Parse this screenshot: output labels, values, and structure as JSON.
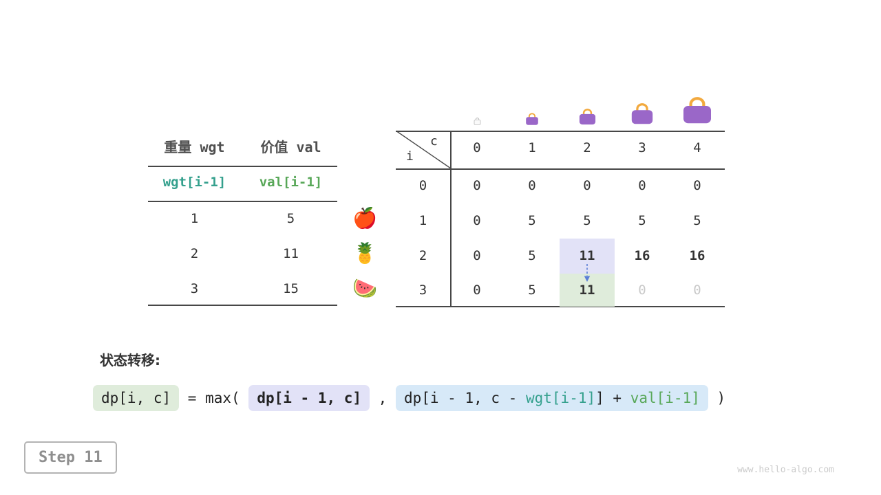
{
  "page": {
    "step_label": "Step 11",
    "watermark": "www.hello-algo.com"
  },
  "colors": {
    "wgt_text": "#34a08d",
    "val_text": "#58a758",
    "hl_green_bg": "#dfecdb",
    "hl_purple_bg": "#e2e2f7",
    "hl_blue_bg": "#d7e9f8",
    "dim_text": "#c9c9c9",
    "bag_body": "#9a67c8",
    "bag_handle": "#f2a93e",
    "arrow": "#5b7fd6"
  },
  "weights_table": {
    "headers": [
      "重量 wgt",
      "价值 val"
    ],
    "var_row": [
      "wgt[i-1]",
      "val[i-1]"
    ],
    "rows": [
      {
        "wgt": "1",
        "val": "5",
        "fruit_icon": "apple-icon",
        "fruit": "🍎"
      },
      {
        "wgt": "2",
        "val": "11",
        "fruit_icon": "pineapple-icon",
        "fruit": "🍍"
      },
      {
        "wgt": "3",
        "val": "15",
        "fruit_icon": "watermelon-icon",
        "fruit": "🍉"
      }
    ]
  },
  "dp_table": {
    "corner_row_var": "i",
    "corner_col_var": "c",
    "col_headers": [
      "0",
      "1",
      "2",
      "3",
      "4"
    ],
    "capacity_icons": [
      "empty-bag-icon",
      "bag-small-icon",
      "bag-medium-icon",
      "bag-large-icon",
      "bag-xlarge-icon"
    ],
    "rows": [
      {
        "header": "0",
        "cells": [
          {
            "v": "0"
          },
          {
            "v": "0"
          },
          {
            "v": "0"
          },
          {
            "v": "0"
          },
          {
            "v": "0"
          }
        ]
      },
      {
        "header": "1",
        "cells": [
          {
            "v": "0"
          },
          {
            "v": "5"
          },
          {
            "v": "5"
          },
          {
            "v": "5"
          },
          {
            "v": "5"
          }
        ]
      },
      {
        "header": "2",
        "cells": [
          {
            "v": "0"
          },
          {
            "v": "5"
          },
          {
            "v": "11",
            "style": "hl-purple"
          },
          {
            "v": "16",
            "style": "bold"
          },
          {
            "v": "16",
            "style": "bold"
          }
        ]
      },
      {
        "header": "3",
        "cells": [
          {
            "v": "0"
          },
          {
            "v": "5"
          },
          {
            "v": "11",
            "style": "hl-green"
          },
          {
            "v": "0",
            "style": "dim"
          },
          {
            "v": "0",
            "style": "dim"
          }
        ]
      }
    ]
  },
  "formula": {
    "label": "状态转移:",
    "tokens": [
      {
        "box": "green",
        "segments": [
          {
            "text": "dp[i, c]"
          }
        ]
      },
      {
        "segments": [
          {
            "text": " = max( "
          }
        ]
      },
      {
        "box": "purple",
        "bold": true,
        "segments": [
          {
            "text": "dp[i - 1, c]"
          }
        ]
      },
      {
        "segments": [
          {
            "text": " , "
          }
        ]
      },
      {
        "box": "blue",
        "segments": [
          {
            "text": "dp[i - 1, c - "
          },
          {
            "text": "wgt[i-1]",
            "color": "wgt"
          },
          {
            "text": "] + "
          },
          {
            "text": "val[i-1]",
            "color": "val"
          }
        ]
      },
      {
        "segments": [
          {
            "text": " )"
          }
        ]
      }
    ]
  }
}
